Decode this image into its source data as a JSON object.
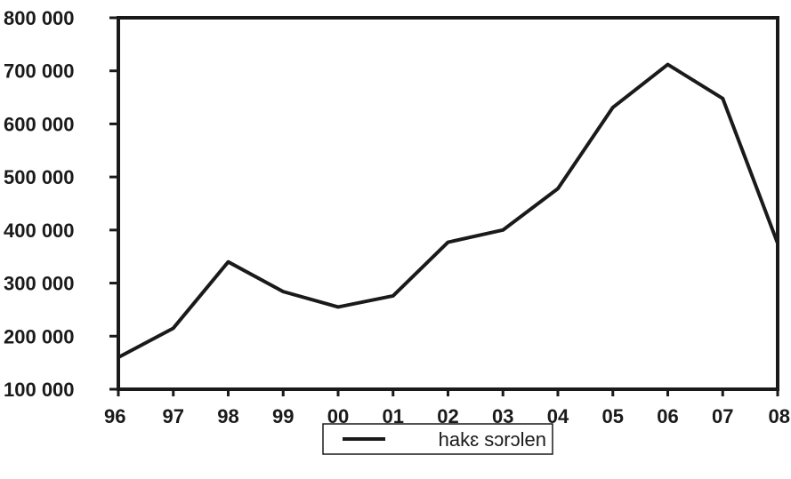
{
  "chart_data": {
    "type": "line",
    "title": "",
    "xlabel": "",
    "ylabel": "",
    "categories": [
      "96",
      "97",
      "98",
      "99",
      "00",
      "01",
      "02",
      "03",
      "04",
      "05",
      "06",
      "07",
      "08"
    ],
    "series": [
      {
        "name": "hakɛ sɔrɔlen",
        "color": "#1a1a1a",
        "values": [
          160000,
          215000,
          340000,
          284000,
          255000,
          276000,
          377000,
          400000,
          478000,
          631000,
          712000,
          648000,
          375000
        ]
      }
    ],
    "ylim": [
      100000,
      800000
    ],
    "yticks": [
      100000,
      200000,
      300000,
      400000,
      500000,
      600000,
      700000,
      800000
    ],
    "ytick_labels": [
      "100 000",
      "200 000",
      "300 000",
      "400 000",
      "500 000",
      "600 000",
      "700 000",
      "800 000"
    ],
    "grid": false,
    "legend_position": "bottom-center"
  }
}
